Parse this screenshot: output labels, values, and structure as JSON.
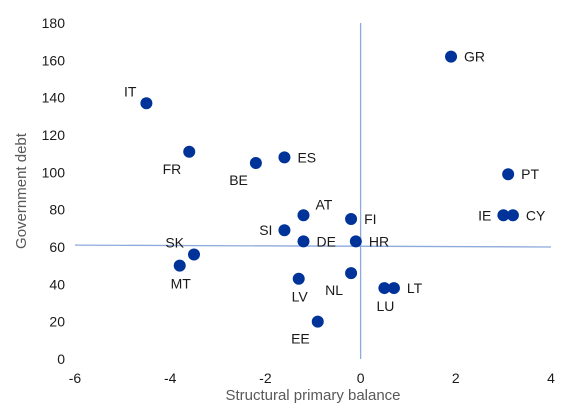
{
  "chart_data": {
    "type": "scatter",
    "xlabel": "Structural primary balance",
    "ylabel": "Government debt",
    "xlim": [
      -6,
      4
    ],
    "ylim": [
      0,
      180
    ],
    "x_ticks": [
      -6,
      -4,
      -2,
      0,
      2,
      4
    ],
    "y_ticks": [
      0,
      20,
      40,
      60,
      80,
      100,
      120,
      140,
      160,
      180
    ],
    "grid": false,
    "legend": "none",
    "point_color": "#003399",
    "reference_line_color": "#8eaadb",
    "reference_lines": {
      "x": 0,
      "y_from": 61,
      "y_to": 60
    },
    "points": [
      {
        "label": "GR",
        "x": 1.9,
        "y": 162,
        "label_pos": "right"
      },
      {
        "label": "IT",
        "x": -4.5,
        "y": 137,
        "label_pos": "upper-left"
      },
      {
        "label": "FR",
        "x": -3.6,
        "y": 111,
        "label_pos": "lower-left"
      },
      {
        "label": "BE",
        "x": -2.2,
        "y": 105,
        "label_pos": "lower-left"
      },
      {
        "label": "ES",
        "x": -1.6,
        "y": 108,
        "label_pos": "right"
      },
      {
        "label": "PT",
        "x": 3.1,
        "y": 99,
        "label_pos": "right"
      },
      {
        "label": "IE",
        "x": 3.0,
        "y": 77,
        "label_pos": "left"
      },
      {
        "label": "CY",
        "x": 3.2,
        "y": 77,
        "label_pos": "right"
      },
      {
        "label": "AT",
        "x": -1.2,
        "y": 77,
        "label_pos": "upper-right"
      },
      {
        "label": "FI",
        "x": -0.2,
        "y": 75,
        "label_pos": "right"
      },
      {
        "label": "SI",
        "x": -1.6,
        "y": 69,
        "label_pos": "left"
      },
      {
        "label": "DE",
        "x": -1.2,
        "y": 63,
        "label_pos": "right"
      },
      {
        "label": "HR",
        "x": -0.1,
        "y": 63,
        "label_pos": "right"
      },
      {
        "label": "SK",
        "x": -3.5,
        "y": 56,
        "label_pos": "upper-left"
      },
      {
        "label": "MT",
        "x": -3.8,
        "y": 50,
        "label_pos": "below"
      },
      {
        "label": "LV",
        "x": -1.3,
        "y": 43,
        "label_pos": "below"
      },
      {
        "label": "NL",
        "x": -0.2,
        "y": 46,
        "label_pos": "lower-left"
      },
      {
        "label": "LU",
        "x": 0.5,
        "y": 38,
        "label_pos": "below"
      },
      {
        "label": "LT",
        "x": 0.7,
        "y": 38,
        "label_pos": "right"
      },
      {
        "label": "EE",
        "x": -0.9,
        "y": 20,
        "label_pos": "lower-left"
      }
    ]
  }
}
